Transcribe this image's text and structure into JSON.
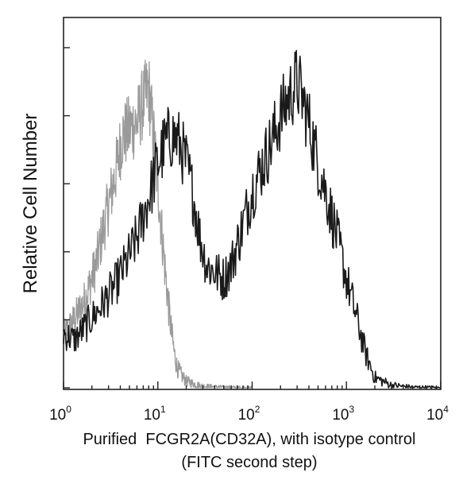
{
  "chart_data": {
    "type": "line",
    "title": "",
    "xlabel": "Purified  FCGR2A(CD32A), with isotype control",
    "xlabel_line2": "(FITC second step)",
    "ylabel": "Relative Cell Number",
    "x_scale": "log",
    "xlim": [
      1,
      10000
    ],
    "ylim": [
      0,
      1
    ],
    "x_ticks": [
      {
        "base": "10",
        "exp": "0",
        "value": 1
      },
      {
        "base": "10",
        "exp": "1",
        "value": 10
      },
      {
        "base": "10",
        "exp": "2",
        "value": 100
      },
      {
        "base": "10",
        "exp": "3",
        "value": 1000
      },
      {
        "base": "10",
        "exp": "4",
        "value": 10000
      }
    ],
    "grid": false,
    "legend": "none",
    "series": [
      {
        "color": "#9a9a9a",
        "x": [
          1,
          1.3,
          1.7,
          2.2,
          2.8,
          3.5,
          4.2,
          5,
          6,
          7,
          8,
          9,
          10,
          11,
          12,
          13,
          14,
          15,
          16,
          18,
          20,
          25,
          30,
          40,
          60,
          100
        ],
        "y": [
          0.15,
          0.2,
          0.26,
          0.36,
          0.5,
          0.62,
          0.74,
          0.76,
          0.78,
          0.84,
          0.88,
          0.74,
          0.6,
          0.46,
          0.34,
          0.24,
          0.16,
          0.1,
          0.06,
          0.035,
          0.02,
          0.01,
          0.005,
          0.003,
          0.001,
          0
        ]
      },
      {
        "color": "#1a1a1a",
        "x": [
          1,
          1.3,
          1.7,
          2.2,
          2.8,
          3.5,
          4.5,
          6,
          8,
          10,
          12,
          14,
          16,
          18,
          20,
          24,
          28,
          33,
          40,
          50,
          60,
          80,
          100,
          130,
          160,
          200,
          250,
          300,
          350,
          400,
          500,
          600,
          800,
          1000,
          1300,
          1600,
          2000,
          3000,
          5000,
          10000
        ],
        "y": [
          0.16,
          0.14,
          0.18,
          0.22,
          0.26,
          0.3,
          0.36,
          0.44,
          0.56,
          0.66,
          0.72,
          0.74,
          0.73,
          0.7,
          0.66,
          0.56,
          0.44,
          0.36,
          0.34,
          0.32,
          0.36,
          0.48,
          0.58,
          0.66,
          0.72,
          0.8,
          0.86,
          0.9,
          0.84,
          0.78,
          0.66,
          0.58,
          0.44,
          0.32,
          0.2,
          0.1,
          0.03,
          0.008,
          0.002,
          0
        ]
      }
    ]
  }
}
